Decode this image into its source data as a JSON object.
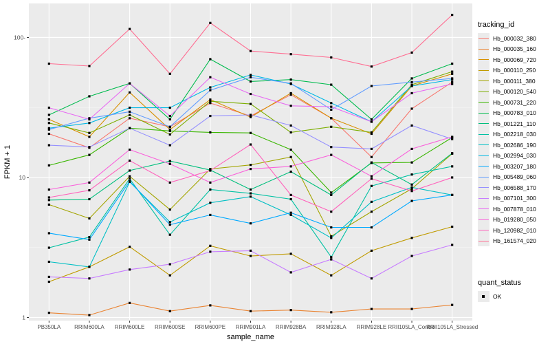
{
  "chart_data": {
    "type": "line",
    "xlabel": "sample_name",
    "ylabel": "FPKM + 1",
    "log_y": true,
    "ylim": [
      0.95,
      175
    ],
    "yticks": [
      1,
      10,
      100
    ],
    "ytick_labels": [
      "1",
      "10",
      "100-"
    ],
    "categories": [
      "PB350LA",
      "RRIM600LA",
      "RRIM600LE",
      "RRIM600SE",
      "RRIM600PE",
      "RRIM901LA",
      "RRIM928BA",
      "RRIM928LA",
      "RRIM928LE",
      "RRII105LA_Control",
      "RRII105LA_Stressed"
    ],
    "tick_labels": [
      "PB350LA",
      "RRIM600LA",
      "RRIM600LE",
      "RRIM600SE",
      "RRIM600PE",
      "RRIM901LA",
      "RRIM928BA",
      "RRIM928LA",
      "RRIM928LE",
      "RRII105LA_Control",
      "RRII105LA_Stressed"
    ],
    "grid": true,
    "series": [
      {
        "name": "Hb_000032_380",
        "color": "#F8766D",
        "values": [
          20.5,
          16.3,
          26.5,
          23.0,
          34.0,
          27.5,
          39.0,
          26.5,
          14.0,
          31.0,
          48.0
        ]
      },
      {
        "name": "Hb_000035_160",
        "color": "#EA8331",
        "values": [
          1.08,
          1.04,
          1.27,
          1.11,
          1.22,
          1.11,
          1.13,
          1.09,
          1.15,
          1.15,
          1.23
        ]
      },
      {
        "name": "Hb_000069_720",
        "color": "#D89000",
        "values": [
          26.0,
          19.5,
          40.5,
          22.0,
          36.0,
          27.0,
          40.0,
          26.5,
          20.5,
          45.0,
          55.0
        ]
      },
      {
        "name": "Hb_000110_250",
        "color": "#C09B00",
        "values": [
          1.8,
          2.3,
          3.2,
          2.0,
          3.25,
          2.75,
          2.85,
          2.0,
          3.0,
          3.7,
          4.45
        ]
      },
      {
        "name": "Hb_000111_380",
        "color": "#A3A500",
        "values": [
          6.4,
          5.1,
          10.2,
          5.9,
          11.5,
          12.3,
          14.0,
          3.8,
          5.7,
          8.3,
          14.8
        ]
      },
      {
        "name": "Hb_000120_540",
        "color": "#7CAE00",
        "values": [
          24.5,
          20.8,
          28.0,
          20.3,
          35.0,
          33.5,
          21.0,
          23.0,
          21.0,
          46.0,
          57.0
        ]
      },
      {
        "name": "Hb_000731_220",
        "color": "#39B600",
        "values": [
          12.2,
          14.5,
          22.5,
          21.5,
          21.0,
          20.8,
          15.8,
          7.8,
          12.7,
          12.8,
          19.3
        ]
      },
      {
        "name": "Hb_000783_010",
        "color": "#00BB4E",
        "values": [
          28.0,
          38.0,
          47.0,
          26.0,
          70.0,
          48.5,
          50.0,
          46.0,
          26.0,
          51.0,
          65.0
        ]
      },
      {
        "name": "Hb_001221_110",
        "color": "#00BF7D",
        "values": [
          6.9,
          7.0,
          11.2,
          13.1,
          11.3,
          8.2,
          11.0,
          7.5,
          12.8,
          8.9,
          14.9
        ]
      },
      {
        "name": "Hb_002218_030",
        "color": "#00C1A3",
        "values": [
          3.15,
          3.75,
          9.8,
          3.9,
          8.2,
          7.7,
          7.0,
          2.7,
          8.7,
          10.5,
          12.0
        ]
      },
      {
        "name": "Hb_002686_190",
        "color": "#00BFC4",
        "values": [
          2.5,
          2.3,
          9.3,
          4.8,
          6.6,
          7.3,
          5.4,
          3.7,
          6.7,
          8.5,
          7.5
        ]
      },
      {
        "name": "Hb_002994_030",
        "color": "#00B8E5",
        "values": [
          22.5,
          24.5,
          31.5,
          31.5,
          44.0,
          54.0,
          46.5,
          34.0,
          25.0,
          45.0,
          50.0
        ]
      },
      {
        "name": "Hb_003207_180",
        "color": "#00A9FF",
        "values": [
          4.0,
          3.6,
          9.4,
          4.6,
          5.4,
          4.7,
          5.6,
          4.4,
          4.4,
          6.8,
          7.5
        ]
      },
      {
        "name": "Hb_005489_060",
        "color": "#619CFF",
        "values": [
          22.0,
          26.5,
          29.5,
          23.0,
          42.0,
          52.0,
          47.0,
          30.5,
          45.0,
          48.0,
          51.0
        ]
      },
      {
        "name": "Hb_006588_170",
        "color": "#9590FF",
        "values": [
          17.0,
          16.5,
          22.5,
          17.0,
          27.5,
          28.0,
          23.5,
          16.5,
          16.0,
          23.5,
          18.8
        ]
      },
      {
        "name": "Hb_007101_300",
        "color": "#C77CFF",
        "values": [
          1.95,
          1.9,
          2.2,
          2.4,
          2.95,
          3.0,
          2.1,
          2.6,
          1.9,
          2.75,
          3.3
        ]
      },
      {
        "name": "Hb_007878_010",
        "color": "#E76BF3",
        "values": [
          31.5,
          26.0,
          47.0,
          27.5,
          52.0,
          39.5,
          32.5,
          32.0,
          25.0,
          40.0,
          46.5
        ]
      },
      {
        "name": "Hb_019280_050",
        "color": "#FA62DB",
        "values": [
          8.2,
          9.2,
          15.8,
          12.5,
          9.2,
          11.5,
          12.0,
          14.5,
          10.2,
          16.0,
          19.5
        ]
      },
      {
        "name": "Hb_120982_010",
        "color": "#FF62BC",
        "values": [
          7.2,
          8.1,
          13.2,
          9.2,
          11.2,
          17.2,
          7.5,
          5.7,
          9.8,
          8.0,
          10.0
        ]
      },
      {
        "name": "Hb_161574_020",
        "color": "#FF6C91",
        "values": [
          65.0,
          62.5,
          115.0,
          55.0,
          127.0,
          80.0,
          76.0,
          72.0,
          62.0,
          78.0,
          145.0
        ]
      }
    ],
    "legend_title": "tracking_id",
    "legend2_title": "quant_status",
    "legend2_items": [
      {
        "label": "OK"
      }
    ],
    "legend_position": "right"
  }
}
